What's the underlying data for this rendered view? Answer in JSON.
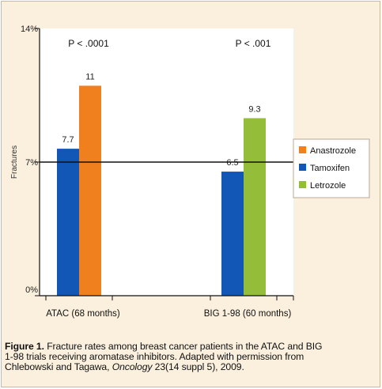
{
  "chart_data": {
    "type": "bar",
    "ylabel": "Fractures",
    "ylim": [
      0,
      14
    ],
    "yticks": [
      {
        "value": 0,
        "label": "0%"
      },
      {
        "value": 7,
        "label": "7%"
      },
      {
        "value": 14,
        "label": "14%"
      }
    ],
    "reference_line": 7,
    "groups": [
      {
        "label": "ATAC (68 months)",
        "annotation": "P < .0001",
        "bars": [
          {
            "series": "Tamoxifen",
            "value": 7.7,
            "label": "7.7"
          },
          {
            "series": "Anastrozole",
            "value": 11,
            "label": "11"
          }
        ]
      },
      {
        "label": "BIG 1-98 (60 months)",
        "annotation": "P < .001",
        "bars": [
          {
            "series": "Tamoxifen",
            "value": 6.5,
            "label": "6.5"
          },
          {
            "series": "Letrozole",
            "value": 9.3,
            "label": "9.3"
          }
        ]
      }
    ],
    "legend": {
      "placement": "right",
      "items": [
        {
          "name": "Anastrozole",
          "color": "#f07f1e"
        },
        {
          "name": "Tamoxifen",
          "color": "#1257b5"
        },
        {
          "name": "Letrozole",
          "color": "#94bd3a"
        }
      ]
    },
    "colors": {
      "Anastrozole": "#f07f1e",
      "Tamoxifen": "#1257b5",
      "Letrozole": "#94bd3a",
      "panel_background": "#fbf0de",
      "plot_background": "#ffffff"
    }
  },
  "caption": {
    "label": "Figure 1.",
    "line1": " Fracture rates among breast cancer patients in the ATAC and BIG",
    "line2": "1-98 trials receiving aromatase inhibitors. Adapted with permission from",
    "line3a": "Chlebowski and Tagawa, ",
    "journal": "Oncology",
    "line3b": " 23(14 suppl 5), 2009."
  }
}
